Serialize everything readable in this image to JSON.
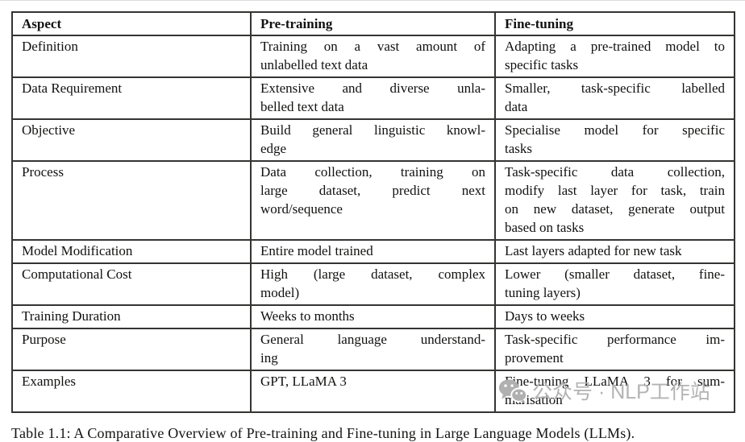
{
  "table": {
    "headers": [
      "Aspect",
      "Pre-training",
      "Fine-tuning"
    ],
    "rows": [
      {
        "aspect": "Definition",
        "pre": [
          "Training on a vast amount of",
          "unlabelled text data"
        ],
        "fine": [
          "Adapting a pre-trained model to",
          "specific tasks"
        ]
      },
      {
        "aspect": "Data Requirement",
        "pre": [
          "Extensive and diverse unla-",
          "belled text data"
        ],
        "fine": [
          "Smaller, task-specific labelled",
          "data"
        ]
      },
      {
        "aspect": "Objective",
        "pre": [
          "Build general linguistic knowl-",
          "edge"
        ],
        "fine": [
          "Specialise model for specific",
          "tasks"
        ]
      },
      {
        "aspect": "Process",
        "pre": [
          "Data collection, training on",
          "large dataset, predict next",
          "word/sequence"
        ],
        "fine": [
          "Task-specific data collection,",
          "modify last layer for task, train",
          "on new dataset, generate output",
          "based on tasks"
        ]
      },
      {
        "aspect": "Model Modification",
        "pre": [
          "Entire model trained"
        ],
        "fine": [
          "Last layers adapted for new task"
        ]
      },
      {
        "aspect": "Computational Cost",
        "pre": [
          "High (large dataset, complex",
          "model)"
        ],
        "fine": [
          "Lower (smaller dataset, fine-",
          "tuning layers)"
        ]
      },
      {
        "aspect": "Training Duration",
        "pre": [
          "Weeks to months"
        ],
        "fine": [
          "Days to weeks"
        ]
      },
      {
        "aspect": "Purpose",
        "pre": [
          "General language understand-",
          "ing"
        ],
        "fine": [
          "Task-specific performance im-",
          "provement"
        ]
      },
      {
        "aspect": "Examples",
        "pre": [
          "GPT, LLaMA 3"
        ],
        "fine": [
          "Fine-tuning LLaMA 3 for sum-",
          "marisation"
        ]
      }
    ]
  },
  "caption": "Table 1.1: A Comparative Overview of Pre-training and Fine-tuning in Large Language Models (LLMs).",
  "watermark": {
    "icon": "wechat-icon",
    "text": "公众号 · NLP工作站",
    "color": "#b3b3b3"
  }
}
